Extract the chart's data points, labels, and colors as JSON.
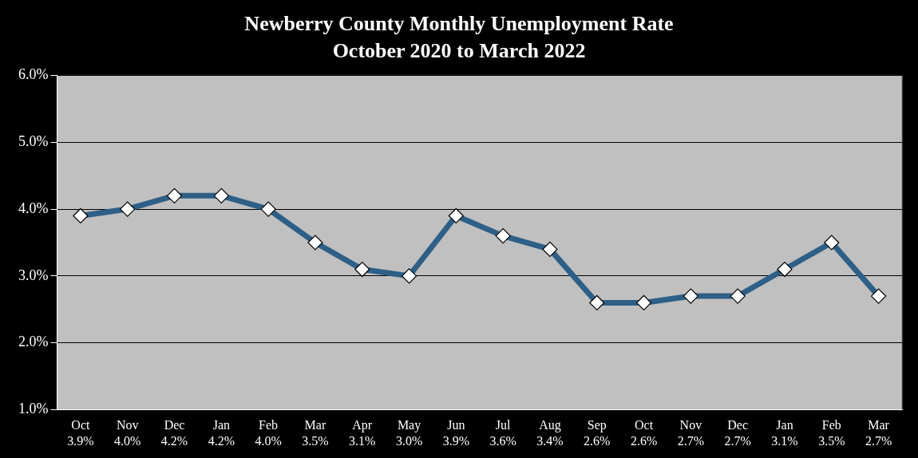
{
  "chart_data": {
    "type": "line",
    "title": "Newberry County Monthly Unemployment Rate",
    "subtitle": "October 2020 to March 2022",
    "categories": [
      "Oct",
      "Nov",
      "Dec",
      "Jan",
      "Feb",
      "Mar",
      "Apr",
      "May",
      "Jun",
      "Jul",
      "Aug",
      "Sep",
      "Oct",
      "Nov",
      "Dec",
      "Jan",
      "Feb",
      "Mar"
    ],
    "series": [
      {
        "color": "#2e5f86",
        "values": [
          3.9,
          4.0,
          4.2,
          4.2,
          4.0,
          3.5,
          3.1,
          3.0,
          3.9,
          3.6,
          3.4,
          2.6,
          2.6,
          2.7,
          2.7,
          3.1,
          3.5,
          2.7
        ],
        "value_labels": [
          "3.9%",
          "4.0%",
          "4.2%",
          "4.2%",
          "4.0%",
          "3.5%",
          "3.1%",
          "3.0%",
          "3.9%",
          "3.6%",
          "3.4%",
          "2.6%",
          "2.6%",
          "2.7%",
          "2.7%",
          "3.1%",
          "3.5%",
          "2.7%"
        ]
      }
    ],
    "ylim": [
      1,
      6
    ],
    "yticks": [
      {
        "value": 1,
        "label": "1.0%"
      },
      {
        "value": 2,
        "label": "2.0%"
      },
      {
        "value": 3,
        "label": "3.0%"
      },
      {
        "value": 4,
        "label": "4.0%"
      },
      {
        "value": 5,
        "label": "5.0%"
      },
      {
        "value": 6,
        "label": "6.0%"
      }
    ],
    "grid": "y",
    "legend": false,
    "marker": "diamond",
    "line_style": "solid"
  }
}
